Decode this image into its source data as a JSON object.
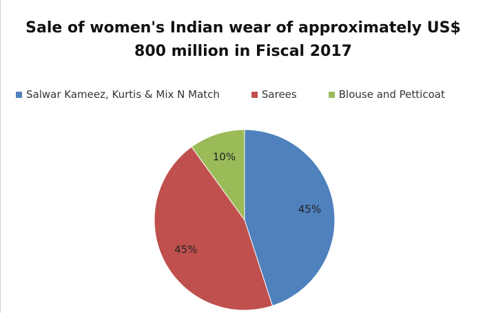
{
  "chart_data": {
    "type": "pie",
    "title": "Sale of women's Indian wear of approximately US$ 800 million in Fiscal 2017",
    "categories": [
      "Salwar Kameez, Kurtis & Mix N Match",
      "Sarees",
      "Blouse and Petticoat"
    ],
    "values": [
      45,
      45,
      10
    ],
    "value_labels": [
      "45%",
      "45%",
      "10%"
    ],
    "colors": [
      "#4f81bd",
      "#c0504d",
      "#9bbb59"
    ],
    "legend": "top"
  }
}
